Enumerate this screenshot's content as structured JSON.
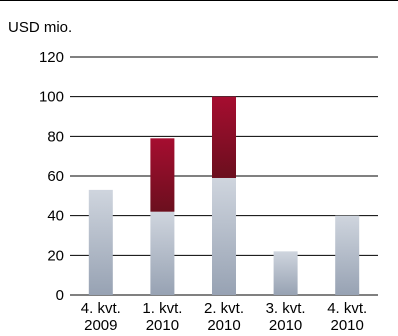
{
  "chart_data": {
    "type": "bar",
    "stacked": true,
    "unit_label": "USD mio.",
    "categories": [
      [
        "4. kvt.",
        "2009"
      ],
      [
        "1. kvt.",
        "2010"
      ],
      [
        "2. kvt.",
        "2010"
      ],
      [
        "3. kvt.",
        "2010"
      ],
      [
        "4. kvt.",
        "2010"
      ]
    ],
    "series": [
      {
        "values": [
          53,
          42,
          59,
          22,
          40
        ],
        "color_top": "#cfd5de",
        "color_bottom": "#97a2b3"
      },
      {
        "values": [
          0,
          37,
          41,
          0,
          0
        ],
        "color_top": "#a60d30",
        "color_bottom": "#6b0f1e"
      }
    ],
    "ylim": [
      0,
      120
    ],
    "yticks": [
      0,
      20,
      40,
      60,
      80,
      100,
      120
    ],
    "grid": true,
    "legend": "none"
  }
}
